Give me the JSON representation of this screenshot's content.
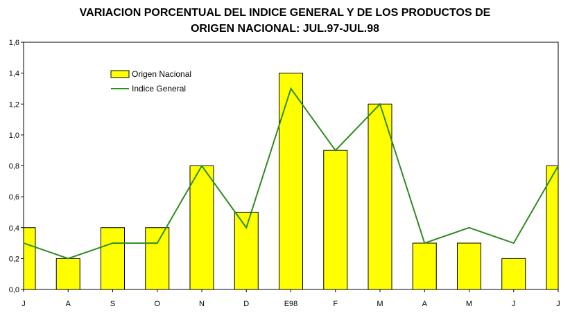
{
  "chart_data": {
    "type": "bar",
    "title_line1": "VARIACION PORCENTUAL DEL INDICE GENERAL Y DE LOS PRODUCTOS DE",
    "title_line2": "ORIGEN NACIONAL: JUL.97-JUL.98",
    "categories": [
      "J",
      "A",
      "S",
      "O",
      "N",
      "D",
      "E98",
      "F",
      "M",
      "A",
      "M",
      "J",
      "J"
    ],
    "series": [
      {
        "name": "Origen Nacional",
        "type": "bar",
        "color": "#ffff00",
        "values": [
          0.4,
          0.2,
          0.4,
          0.4,
          0.8,
          0.5,
          1.4,
          0.9,
          1.2,
          0.3,
          0.3,
          0.2,
          0.8
        ]
      },
      {
        "name": "Indice General",
        "type": "line",
        "color": "#2e8b1e",
        "values": [
          0.3,
          0.2,
          0.3,
          0.3,
          0.8,
          0.4,
          1.3,
          0.9,
          1.2,
          0.3,
          0.4,
          0.3,
          0.8
        ]
      }
    ],
    "ylim": [
      0,
      1.6
    ],
    "yticks": [
      "0,0",
      "0,2",
      "0,4",
      "0,6",
      "0,8",
      "1,0",
      "1,2",
      "1,4",
      "1,6"
    ],
    "ytick_values": [
      0,
      0.2,
      0.4,
      0.6,
      0.8,
      1.0,
      1.2,
      1.4,
      1.6
    ],
    "legend_position": "top-left",
    "grid": false
  }
}
